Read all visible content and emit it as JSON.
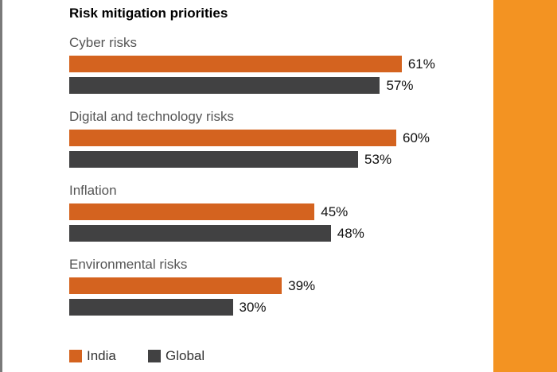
{
  "chart_data": {
    "type": "bar",
    "orientation": "horizontal",
    "title": "Risk mitigation priorities",
    "categories": [
      "Cyber risks",
      "Digital and technology risks",
      "Inflation",
      "Environmental risks"
    ],
    "series": [
      {
        "name": "India",
        "values": [
          61,
          60,
          45,
          39
        ],
        "color": "#D4631F"
      },
      {
        "name": "Global",
        "values": [
          57,
          53,
          48,
          30
        ],
        "color": "#414142"
      }
    ],
    "value_suffix": "%",
    "xlim": [
      0,
      100
    ],
    "grid": false,
    "legend": "bottom-left"
  },
  "colors": {
    "side_panel": "#F39322",
    "left_border": "#7a7a7a"
  }
}
